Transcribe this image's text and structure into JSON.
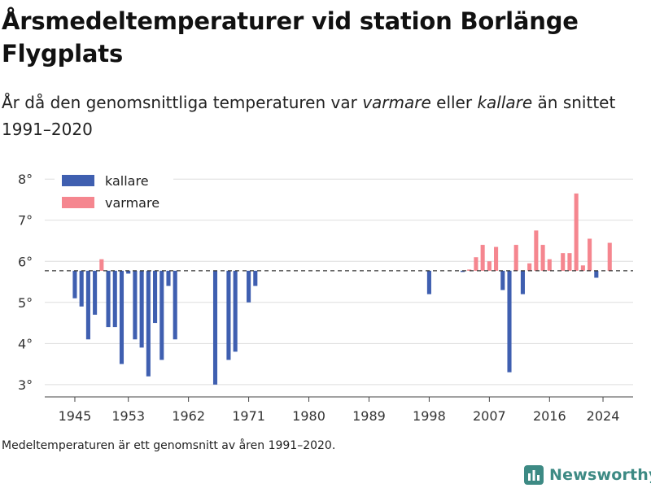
{
  "title": "Årsmedeltemperaturer vid station Borlänge Flygplats",
  "subtitle": {
    "prefix": "År då den genomsnittliga temperaturen var ",
    "word1": "varmare",
    "middle": " eller ",
    "word2": "kallare",
    "suffix": " än snittet 1991–2020"
  },
  "footnote": "Medeltemperaturen är ett genomsnitt av åren 1991–2020.",
  "brand": {
    "name": "Newsworthy",
    "icon": "newsworthy-logo-icon",
    "color": "#3d8a84"
  },
  "chart_data": {
    "type": "bar",
    "baseline": 5.77,
    "ylim": [
      2.7,
      8.4
    ],
    "yticks": [
      3,
      4,
      5,
      6,
      7,
      8
    ],
    "ytick_suffix": "°",
    "xlim": [
      1940.5,
      2028.5
    ],
    "xticks": [
      1945,
      1953,
      1962,
      1971,
      1980,
      1989,
      1998,
      2007,
      2016,
      2024
    ],
    "grid": true,
    "legend_position": "top-left",
    "colors": {
      "kallare": "#3f5fb0",
      "varmare": "#f5868f",
      "reference_line": "#333333"
    },
    "series": [
      {
        "name": "kallare",
        "points": [
          {
            "x": 1945,
            "y": 5.1
          },
          {
            "x": 1946,
            "y": 4.9
          },
          {
            "x": 1947,
            "y": 4.1
          },
          {
            "x": 1948,
            "y": 4.7
          },
          {
            "x": 1950,
            "y": 4.4
          },
          {
            "x": 1951,
            "y": 4.4
          },
          {
            "x": 1952,
            "y": 3.5
          },
          {
            "x": 1953,
            "y": 5.7
          },
          {
            "x": 1954,
            "y": 4.1
          },
          {
            "x": 1955,
            "y": 3.9
          },
          {
            "x": 1956,
            "y": 3.2
          },
          {
            "x": 1957,
            "y": 4.5
          },
          {
            "x": 1958,
            "y": 3.6
          },
          {
            "x": 1959,
            "y": 5.4
          },
          {
            "x": 1960,
            "y": 4.1
          },
          {
            "x": 1966,
            "y": 3.0
          },
          {
            "x": 1968,
            "y": 3.6
          },
          {
            "x": 1969,
            "y": 3.8
          },
          {
            "x": 1971,
            "y": 5.0
          },
          {
            "x": 1972,
            "y": 5.4
          },
          {
            "x": 1998,
            "y": 5.2
          },
          {
            "x": 2003,
            "y": 5.74
          },
          {
            "x": 2009,
            "y": 5.3
          },
          {
            "x": 2010,
            "y": 3.3
          },
          {
            "x": 2012,
            "y": 5.2
          },
          {
            "x": 2023,
            "y": 5.6
          }
        ]
      },
      {
        "name": "varmare",
        "points": [
          {
            "x": 1949,
            "y": 6.05
          },
          {
            "x": 2004,
            "y": 5.8
          },
          {
            "x": 2005,
            "y": 6.1
          },
          {
            "x": 2006,
            "y": 6.4
          },
          {
            "x": 2007,
            "y": 6.0
          },
          {
            "x": 2008,
            "y": 6.35
          },
          {
            "x": 2011,
            "y": 6.4
          },
          {
            "x": 2013,
            "y": 5.95
          },
          {
            "x": 2014,
            "y": 6.75
          },
          {
            "x": 2015,
            "y": 6.4
          },
          {
            "x": 2016,
            "y": 6.05
          },
          {
            "x": 2018,
            "y": 6.2
          },
          {
            "x": 2019,
            "y": 6.2
          },
          {
            "x": 2020,
            "y": 7.65
          },
          {
            "x": 2021,
            "y": 5.9
          },
          {
            "x": 2022,
            "y": 6.55
          },
          {
            "x": 2025,
            "y": 6.45
          }
        ]
      }
    ]
  }
}
